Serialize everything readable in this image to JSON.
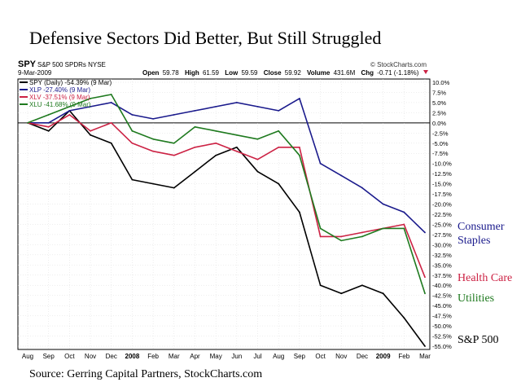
{
  "title": "Defensive Sectors Did Better, But Still Struggled",
  "source": "Source: Gerring Capital Partners, StockCharts.com",
  "header": {
    "symbol": "SPY",
    "name": "S&P 500 SPDRs NYSE",
    "date": "9-Mar-2009",
    "brand": "© StockCharts.com",
    "open_label": "Open",
    "open": "59.78",
    "high_label": "High",
    "high": "61.59",
    "low_label": "Low",
    "low": "59.59",
    "close_label": "Close",
    "close": "59.92",
    "volume_label": "Volume",
    "volume": "431.6M",
    "chg_label": "Chg",
    "chg": "-0.71 (-1.18%)"
  },
  "legend": [
    "SPY (Daily) -54.39% (9 Mar)",
    "XLP -27.40% (9 Mar)",
    "XLV -37.51% (9 Mar)",
    "XLU -41.68% (9 Mar)"
  ],
  "labels": {
    "consumer": "Consumer",
    "staples": "Staples",
    "health": "Health Care",
    "utilities": "Utilities",
    "sp500": "S&P 500"
  },
  "chart_data": {
    "type": "line",
    "ylim": [
      -55,
      10
    ],
    "yticks": [
      "10.0%",
      "7.5%",
      "5.0%",
      "2.5%",
      "0.0%",
      "-2.5%",
      "-5.0%",
      "-7.5%",
      "-10.0%",
      "-12.5%",
      "-15.0%",
      "-17.5%",
      "-20.0%",
      "-22.5%",
      "-25.0%",
      "-27.5%",
      "-30.0%",
      "-32.5%",
      "-35.0%",
      "-37.5%",
      "-40.0%",
      "-42.5%",
      "-45.0%",
      "-47.5%",
      "-50.0%",
      "-52.5%",
      "-55.0%"
    ],
    "xticks": [
      "Aug",
      "Sep",
      "Oct",
      "Nov",
      "Dec",
      "2008",
      "Feb",
      "Mar",
      "Apr",
      "May",
      "Jun",
      "Jul",
      "Aug",
      "Sep",
      "Oct",
      "Nov",
      "Dec",
      "2009",
      "Feb",
      "Mar"
    ],
    "x": [
      "Aug",
      "Sep",
      "Oct",
      "Nov",
      "Dec",
      "2008",
      "Feb",
      "Mar",
      "Apr",
      "May",
      "Jun",
      "Jul",
      "Aug",
      "Sep",
      "Oct",
      "Nov",
      "Dec",
      "2009",
      "Feb",
      "Mar"
    ],
    "series": [
      {
        "name": "SPY",
        "color": "#000000",
        "values": [
          0,
          -2,
          3,
          -3,
          -5,
          -14,
          -15,
          -16,
          -12,
          -8,
          -6,
          -12,
          -15,
          -22,
          -40,
          -42,
          -40,
          -42,
          -48,
          -55
        ]
      },
      {
        "name": "XLP",
        "color": "#1a1a8c",
        "values": [
          0,
          0,
          3,
          4,
          5,
          2,
          1,
          2,
          3,
          4,
          5,
          4,
          3,
          6,
          -10,
          -13,
          -16,
          -20,
          -22,
          -27
        ]
      },
      {
        "name": "XLV",
        "color": "#cc2244",
        "values": [
          0,
          -1,
          2,
          -2,
          0,
          -5,
          -7,
          -8,
          -6,
          -5,
          -7,
          -9,
          -6,
          -6,
          -28,
          -28,
          -27,
          -26,
          -25,
          -38
        ]
      },
      {
        "name": "XLU",
        "color": "#1f7a1f",
        "values": [
          0,
          2,
          4,
          6,
          7,
          -2,
          -4,
          -5,
          -1,
          -2,
          -3,
          -4,
          -2,
          -8,
          -26,
          -29,
          -28,
          -26,
          -26,
          -42
        ]
      }
    ]
  }
}
